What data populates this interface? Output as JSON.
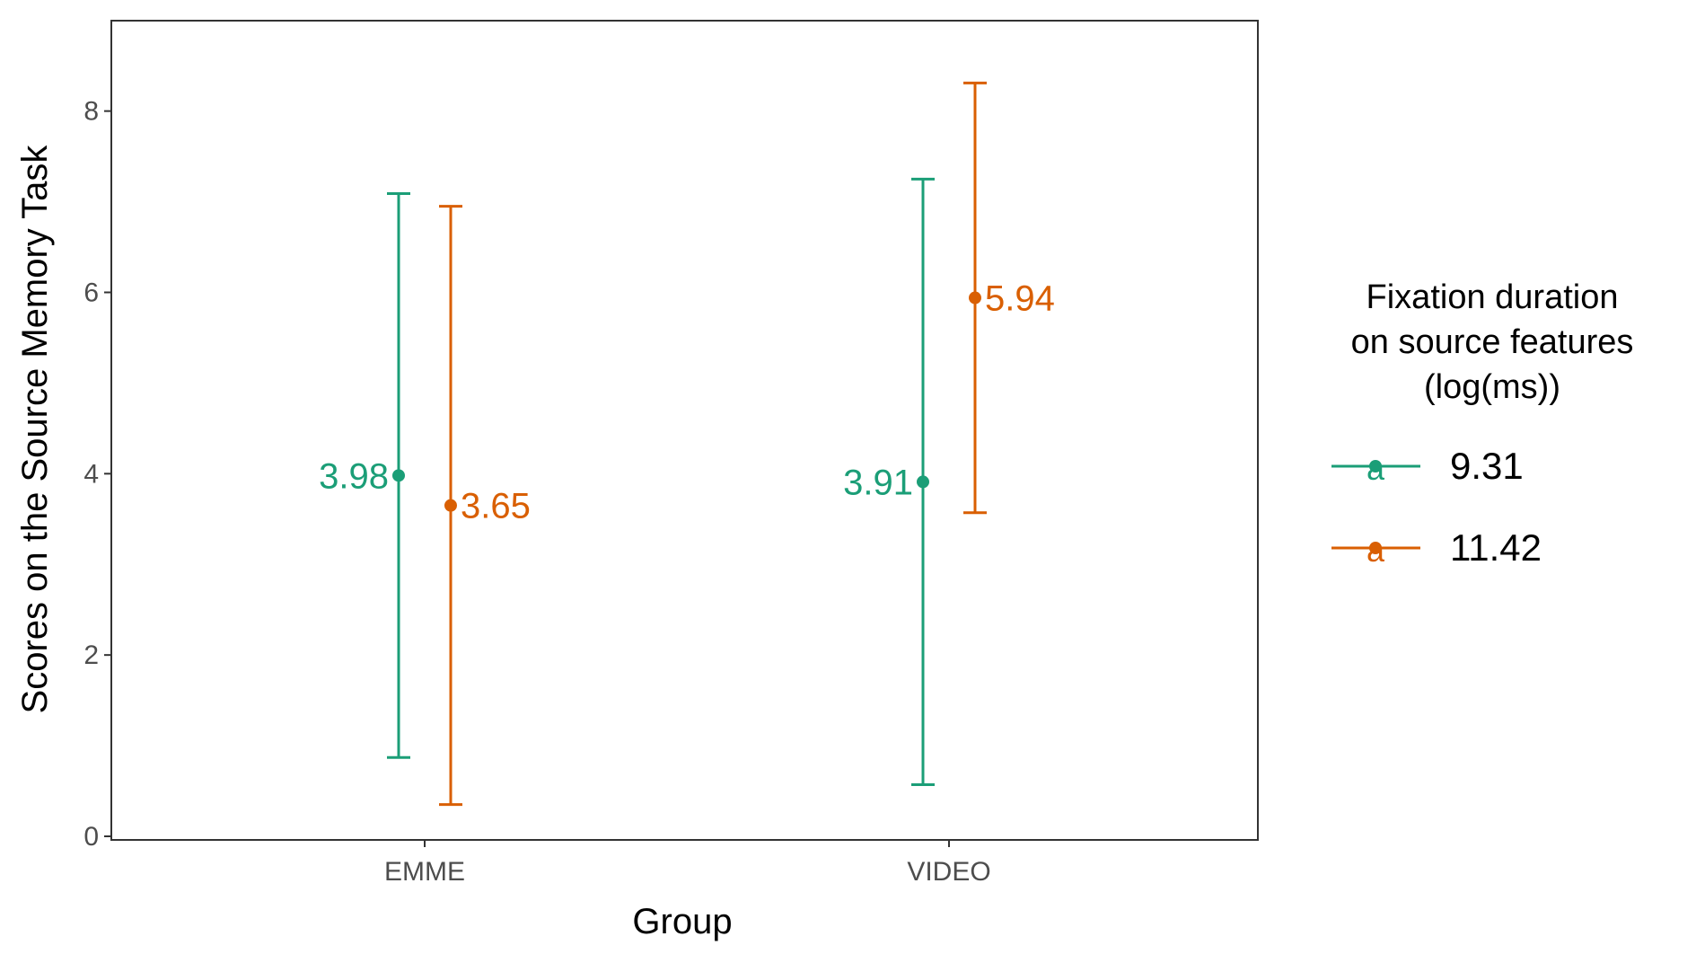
{
  "chart_data": {
    "type": "errorbar",
    "xlabel": "Group",
    "ylabel": "Scores on the Source Memory Task",
    "categories": [
      "EMME",
      "VIDEO"
    ],
    "ylim": [
      0,
      8.7
    ],
    "yticks": [
      0,
      2,
      4,
      6,
      8
    ],
    "grid": false,
    "legend": {
      "title_lines": [
        "Fixation duration",
        "on source features",
        "(log(ms))"
      ],
      "placement": "right",
      "key_glyph": "a"
    },
    "series": [
      {
        "name": "9.31",
        "color": "#1B9E77",
        "values": [
          3.98,
          3.91
        ],
        "lower": [
          0.87,
          0.57
        ],
        "upper": [
          7.09,
          7.25
        ],
        "labels": [
          "3.98",
          "3.91"
        ],
        "label_side": "left"
      },
      {
        "name": "11.42",
        "color": "#D95F02",
        "values": [
          3.65,
          5.94
        ],
        "lower": [
          0.35,
          3.57
        ],
        "upper": [
          6.95,
          8.31
        ],
        "labels": [
          "3.65",
          "5.94"
        ],
        "label_side": "right"
      }
    ]
  }
}
